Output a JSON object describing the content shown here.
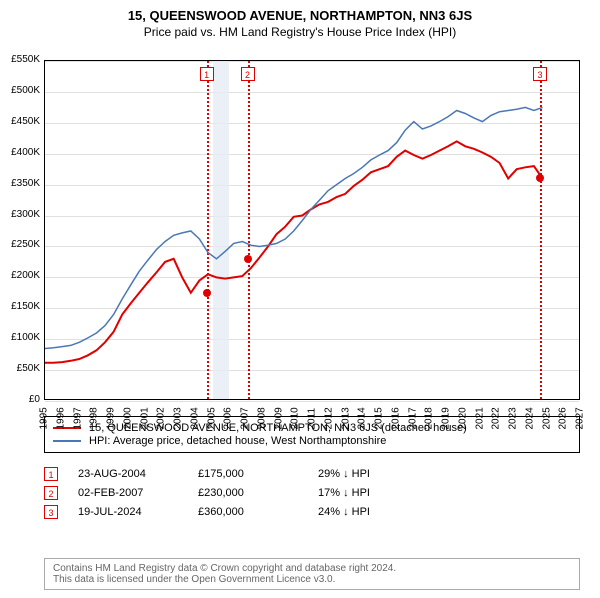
{
  "title": "15, QUEENSWOOD AVENUE, NORTHAMPTON, NN3 6JS",
  "subtitle": "Price paid vs. HM Land Registry's House Price Index (HPI)",
  "chart": {
    "type": "line",
    "background_color": "#ffffff",
    "grid_color": "#e0e0e0",
    "border_color": "#000000",
    "xlim": [
      1995,
      2027
    ],
    "ylim": [
      0,
      550000
    ],
    "ytick_step": 50000,
    "yticks": [
      "£0",
      "£50K",
      "£100K",
      "£150K",
      "£200K",
      "£250K",
      "£300K",
      "£350K",
      "£400K",
      "£450K",
      "£500K",
      "£550K"
    ],
    "xticks": [
      "1995",
      "1996",
      "1997",
      "1998",
      "1999",
      "2000",
      "2001",
      "2002",
      "2003",
      "2004",
      "2005",
      "2006",
      "2007",
      "2008",
      "2009",
      "2010",
      "2011",
      "2012",
      "2013",
      "2014",
      "2015",
      "2016",
      "2017",
      "2018",
      "2019",
      "2020",
      "2021",
      "2022",
      "2023",
      "2024",
      "2025",
      "2026",
      "2027"
    ],
    "shade_2005_color": "#e6ecf5",
    "series": [
      {
        "name": "property",
        "color": "#e00000",
        "width": 2,
        "y": [
          62,
          62,
          63,
          65,
          68,
          74,
          82,
          95,
          112,
          140,
          158,
          175,
          192,
          208,
          225,
          230,
          200,
          175,
          195,
          205,
          200,
          198,
          200,
          202,
          215,
          232,
          250,
          270,
          282,
          298,
          300,
          310,
          318,
          322,
          330,
          335,
          348,
          358,
          370,
          375,
          380,
          395,
          405,
          398,
          392,
          398,
          405,
          412,
          420,
          412,
          408,
          402,
          395,
          385,
          360,
          375,
          378,
          380,
          360
        ]
      },
      {
        "name": "hpi",
        "color": "#4a78b5",
        "width": 1.5,
        "y": [
          85,
          86,
          88,
          90,
          95,
          102,
          110,
          122,
          140,
          165,
          188,
          210,
          228,
          245,
          258,
          268,
          272,
          275,
          262,
          240,
          230,
          242,
          255,
          258,
          252,
          250,
          252,
          255,
          262,
          275,
          292,
          310,
          325,
          340,
          350,
          360,
          368,
          378,
          390,
          398,
          405,
          418,
          438,
          452,
          440,
          445,
          452,
          460,
          470,
          465,
          458,
          452,
          462,
          468,
          470,
          472,
          475,
          470,
          475
        ]
      }
    ],
    "markers": [
      {
        "n": "1",
        "x": 2004.65,
        "y": 175000,
        "date": "23-AUG-2004",
        "price": "£175,000",
        "delta": "29% ↓ HPI"
      },
      {
        "n": "2",
        "x": 2007.09,
        "y": 230000,
        "date": "02-FEB-2007",
        "price": "£230,000",
        "delta": "17% ↓ HPI"
      },
      {
        "n": "3",
        "x": 2024.55,
        "y": 360000,
        "date": "19-JUL-2024",
        "price": "£360,000",
        "delta": "24% ↓ HPI"
      }
    ]
  },
  "legend": {
    "items": [
      {
        "color": "#e00000",
        "label": "15, QUEENSWOOD AVENUE, NORTHAMPTON, NN3 6JS (detached house)"
      },
      {
        "color": "#4a78b5",
        "label": "HPI: Average price, detached house, West Northamptonshire"
      }
    ]
  },
  "attribution": {
    "line1": "Contains HM Land Registry data © Crown copyright and database right 2024.",
    "line2": "This data is licensed under the Open Government Licence v3.0."
  }
}
